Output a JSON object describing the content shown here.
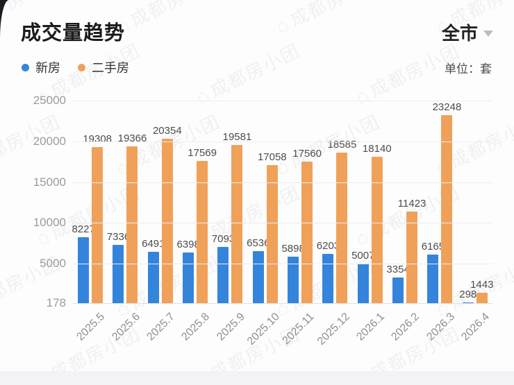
{
  "header": {
    "title": "成交量趋势",
    "region_selector": "全市",
    "unit_label": "单位：套"
  },
  "watermark": {
    "text": "成都房小团",
    "icon": "house-outline"
  },
  "colors": {
    "new_home": "#3484db",
    "second_hand": "#f0a159"
  },
  "chart_data": {
    "type": "bar",
    "title": "成交量趋势",
    "categories": [
      "2025.5",
      "2025.6",
      "2025.7",
      "2025.8",
      "2025.9",
      "2025.10",
      "2025.11",
      "2025.12",
      "2026.1",
      "2026.2",
      "2026.3",
      "2026.4"
    ],
    "series": [
      {
        "name": "新房",
        "color": "#3484db",
        "values": [
          8227,
          7336,
          6491,
          6398,
          7093,
          6536,
          5898,
          6203,
          5007,
          3354,
          6165,
          298
        ]
      },
      {
        "name": "二手房",
        "color": "#f0a159",
        "values": [
          19308,
          19366,
          20354,
          17569,
          19581,
          17058,
          17560,
          18585,
          18140,
          11423,
          23248,
          1443
        ]
      }
    ],
    "ylim": [
      178,
      25000
    ],
    "yticks": [
      25000,
      20000,
      15000,
      10000,
      5000,
      178
    ],
    "xlabel": "",
    "ylabel": "单位：套",
    "grid": true,
    "legend_position": "top-left",
    "x_tick_rotation": -45
  }
}
